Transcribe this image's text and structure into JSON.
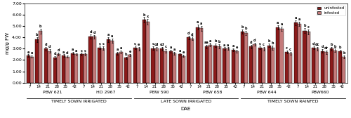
{
  "chart_data": {
    "type": "bar",
    "ylabel": "mg/g FW",
    "xlabel": "DAE",
    "categories": [
      "7",
      "14",
      "21",
      "28",
      "35",
      "42",
      "7",
      "14",
      "21",
      "28",
      "35",
      "42",
      "7",
      "14",
      "21",
      "28",
      "35",
      "42",
      "7",
      "14",
      "21",
      "28",
      "35",
      "42",
      "7",
      "14",
      "21",
      "28",
      "35",
      "42",
      "7",
      "14",
      "21",
      "28",
      "35",
      "42"
    ],
    "groups": [
      "PBW 621",
      "HD 2967",
      "PBW 590",
      "PBW 658",
      "PBW 644",
      "PBW660"
    ],
    "sections": [
      "TIMELY SOWN IRRIGATED",
      "LATE SOWN IRRIGATED",
      "TIMELY SOWN RAINFED"
    ],
    "series": [
      {
        "name": "uninfested",
        "color": "#8B1A1A",
        "values": [
          2.4,
          3.8,
          3.0,
          2.2,
          2.4,
          2.6,
          2.5,
          4.1,
          3.1,
          3.8,
          2.6,
          2.2,
          3.1,
          5.55,
          3.05,
          3.0,
          2.8,
          2.5,
          4.0,
          4.9,
          3.2,
          3.3,
          3.0,
          2.9,
          4.5,
          3.2,
          3.1,
          3.3,
          4.9,
          2.7,
          5.3,
          4.6,
          3.1,
          2.8,
          3.0,
          2.8
        ],
        "errors": [
          0.1,
          0.2,
          0.15,
          0.12,
          0.1,
          0.1,
          0.12,
          0.18,
          0.15,
          0.2,
          0.12,
          0.1,
          0.15,
          0.25,
          0.15,
          0.15,
          0.12,
          0.1,
          0.15,
          0.22,
          0.15,
          0.18,
          0.12,
          0.12,
          0.2,
          0.15,
          0.15,
          0.18,
          0.2,
          0.12,
          0.2,
          0.22,
          0.15,
          0.15,
          0.15,
          0.12
        ],
        "annotations": [
          "e",
          "b",
          "d",
          "d",
          "a",
          "a",
          "c",
          "d",
          "c",
          "a",
          "a",
          "b",
          "c",
          "b",
          "c",
          "cd",
          "a",
          "a",
          "d",
          "a",
          "aa",
          "b",
          "a",
          "a",
          "b",
          "d",
          "c",
          "b",
          "a",
          "c",
          "a",
          "b",
          "d",
          "d",
          "b",
          "b"
        ]
      },
      {
        "name": "infested",
        "color": "#C47A7A",
        "values": [
          2.3,
          4.55,
          2.8,
          2.55,
          2.3,
          2.5,
          2.5,
          4.05,
          3.05,
          3.7,
          2.7,
          2.45,
          3.0,
          5.4,
          3.0,
          2.8,
          2.6,
          2.35,
          3.9,
          4.8,
          3.35,
          3.2,
          3.0,
          2.8,
          4.4,
          3.4,
          3.0,
          3.1,
          4.75,
          2.6,
          5.2,
          4.5,
          3.0,
          2.7,
          2.85,
          2.3
        ],
        "errors": [
          0.1,
          0.2,
          0.15,
          0.12,
          0.1,
          0.1,
          0.12,
          0.18,
          0.15,
          0.2,
          0.12,
          0.1,
          0.15,
          0.25,
          0.15,
          0.15,
          0.12,
          0.1,
          0.15,
          0.22,
          0.15,
          0.18,
          0.12,
          0.12,
          0.2,
          0.15,
          0.15,
          0.18,
          0.2,
          0.12,
          0.2,
          0.22,
          0.15,
          0.15,
          0.15,
          0.12
        ],
        "annotations": [
          "e",
          "b",
          "d",
          "d",
          "d",
          "a",
          "c",
          "d",
          "c",
          "a",
          "a",
          "e",
          "e",
          "x",
          "cd",
          "c",
          "a",
          "e",
          "d",
          "a",
          "a",
          "b",
          "a",
          "e",
          "b",
          "d",
          "c",
          "b",
          "a",
          "c",
          "a",
          "c",
          "dc",
          "dr",
          "b",
          "b"
        ]
      }
    ],
    "ylim": [
      0.0,
      7.0
    ],
    "yticks": [
      {
        "value": 0.0,
        "label": "0.00"
      },
      {
        "value": 1.0,
        "label": "1.00"
      },
      {
        "value": 2.0,
        "label": "2.00"
      },
      {
        "value": 3.0,
        "label": "3.00"
      },
      {
        "value": 4.0,
        "label": "4.00"
      },
      {
        "value": 5.0,
        "label": "5.00"
      },
      {
        "value": 6.0,
        "label": "6.00"
      },
      {
        "value": 7.0,
        "label": "7.00"
      }
    ],
    "legend": "upper right",
    "grid": false
  }
}
